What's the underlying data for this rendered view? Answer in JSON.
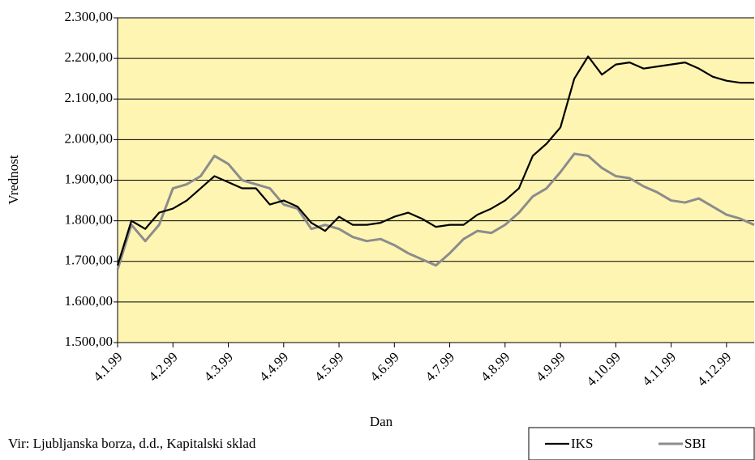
{
  "chart_data": {
    "type": "line",
    "y_label": "Vrednost",
    "x_label": "Dan",
    "source": "Vir: Ljubljanska borza, d.d., Kapitalski sklad",
    "categories": [
      "4.1.99",
      null,
      null,
      null,
      "4.2.99",
      null,
      null,
      null,
      "4.3.99",
      null,
      null,
      null,
      "4.4.99",
      null,
      null,
      null,
      "4.5.99",
      null,
      null,
      null,
      "4.6.99",
      null,
      null,
      null,
      "4.7.99",
      null,
      null,
      null,
      "4.8.99",
      null,
      null,
      null,
      "4.9.99",
      null,
      null,
      null,
      "4.10.99",
      null,
      null,
      null,
      "4.11.99",
      null,
      null,
      null,
      "4.12.99",
      null,
      null
    ],
    "series": [
      {
        "name": "IKS",
        "color": "#000000",
        "values": [
          1690,
          1800,
          1780,
          1820,
          1830,
          1850,
          1880,
          1910,
          1895,
          1880,
          1880,
          1840,
          1850,
          1835,
          1795,
          1775,
          1810,
          1790,
          1790,
          1795,
          1810,
          1820,
          1805,
          1785,
          1790,
          1790,
          1815,
          1830,
          1850,
          1880,
          1960,
          1990,
          2030,
          2150,
          2205,
          2160,
          2185,
          2190,
          2175,
          2180,
          2185,
          2190,
          2175,
          2155,
          2145,
          2140,
          2140
        ]
      },
      {
        "name": "SBI",
        "color": "#8c8c8c",
        "values": [
          1680,
          1790,
          1750,
          1790,
          1880,
          1890,
          1910,
          1960,
          1940,
          1900,
          1890,
          1880,
          1840,
          1830,
          1780,
          1790,
          1780,
          1760,
          1750,
          1755,
          1740,
          1720,
          1705,
          1690,
          1720,
          1755,
          1775,
          1770,
          1790,
          1820,
          1860,
          1880,
          1920,
          1965,
          1960,
          1930,
          1910,
          1905,
          1885,
          1870,
          1850,
          1845,
          1855,
          1835,
          1815,
          1805,
          1790
        ]
      }
    ],
    "ylim": [
      1500,
      2300
    ],
    "yticks": [
      {
        "value": 1500,
        "label": "1.500,00"
      },
      {
        "value": 1600,
        "label": "1.600,00"
      },
      {
        "value": 1700,
        "label": "1.700,00"
      },
      {
        "value": 1800,
        "label": "1.800,00"
      },
      {
        "value": 1900,
        "label": "1.900,00"
      },
      {
        "value": 2000,
        "label": "2.000,00"
      },
      {
        "value": 2100,
        "label": "2.100,00"
      },
      {
        "value": 2200,
        "label": "2.200,00"
      },
      {
        "value": 2300,
        "label": "2.300,00"
      }
    ],
    "grid": true,
    "legend": "bottom-right",
    "background": "#fff5b3"
  }
}
